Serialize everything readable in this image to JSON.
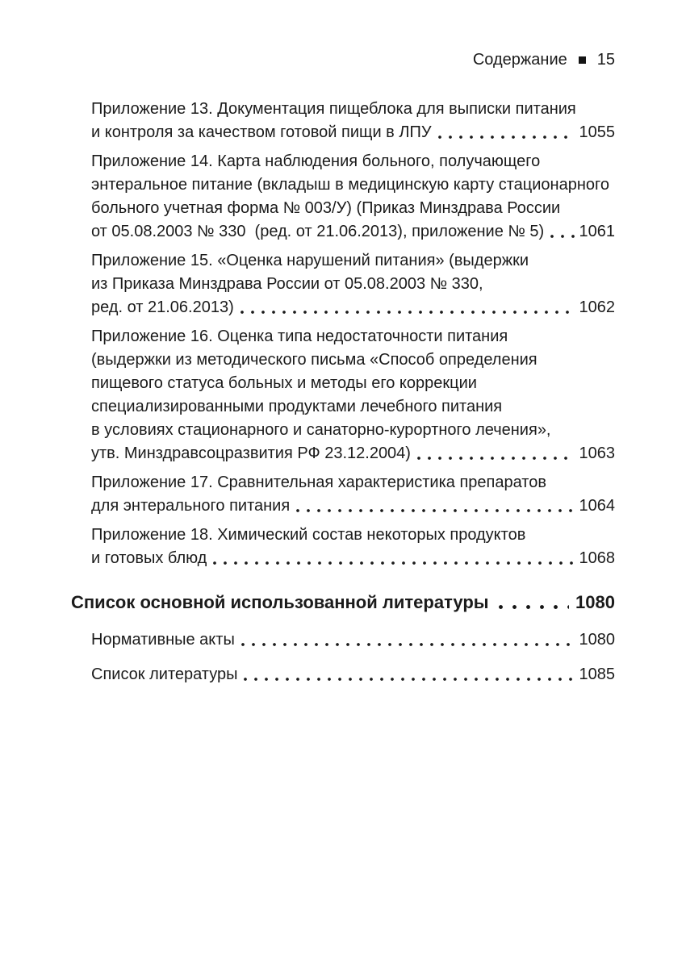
{
  "header": {
    "section_title": "Содержание",
    "page_number": "15"
  },
  "toc": {
    "entries": [
      {
        "type": "item",
        "wrapped_lines": [
          "Приложение 13. Документация пищеблока для выписки питания"
        ],
        "tail": "и контроля за качеством готовой пищи в ЛПУ",
        "page": "1055"
      },
      {
        "type": "item",
        "wrapped_lines": [
          "Приложение 14. Карта наблюдения больного, получающего",
          "энтеральное питание (вкладыш в медицинскую карту стационарного",
          "больного учетная форма № 003/У) (Приказ Минздрава России"
        ],
        "tail": "от 05.08.2003 № 330  (ред. от 21.06.2013), приложение № 5)",
        "page": "1061"
      },
      {
        "type": "item",
        "wrapped_lines": [
          "Приложение 15. «Оценка нарушений питания» (выдержки",
          "из Приказа Минздрава России от 05.08.2003 № 330,"
        ],
        "tail": "ред. от 21.06.2013)",
        "page": "1062"
      },
      {
        "type": "item",
        "wrapped_lines": [
          "Приложение 16. Оценка типа недостаточности питания",
          "(выдержки из методического письма «Способ определения",
          "пищевого статуса больных и методы его коррекции",
          "специализированными продуктами лечебного питания",
          "в условиях стационарного и санаторно-курортного лечения»,"
        ],
        "tail": "утв. Минздравсоцразвития РФ 23.12.2004)",
        "page": "1063"
      },
      {
        "type": "item",
        "wrapped_lines": [
          "Приложение 17. Сравнительная характеристика препаратов"
        ],
        "tail": "для энтерального питания",
        "page": "1064"
      },
      {
        "type": "item",
        "wrapped_lines": [
          "Приложение 18. Химический состав некоторых продуктов"
        ],
        "tail": "и готовых блюд",
        "page": "1068"
      },
      {
        "type": "section",
        "wrapped_lines": [],
        "tail": "Список основной использованной литературы",
        "page": "1080"
      },
      {
        "type": "item",
        "spacing": "wide",
        "wrapped_lines": [],
        "tail": "Нормативные акты",
        "page": "1080"
      },
      {
        "type": "item",
        "spacing": "wide",
        "wrapped_lines": [],
        "tail": "Список литературы",
        "page": "1085"
      }
    ]
  }
}
